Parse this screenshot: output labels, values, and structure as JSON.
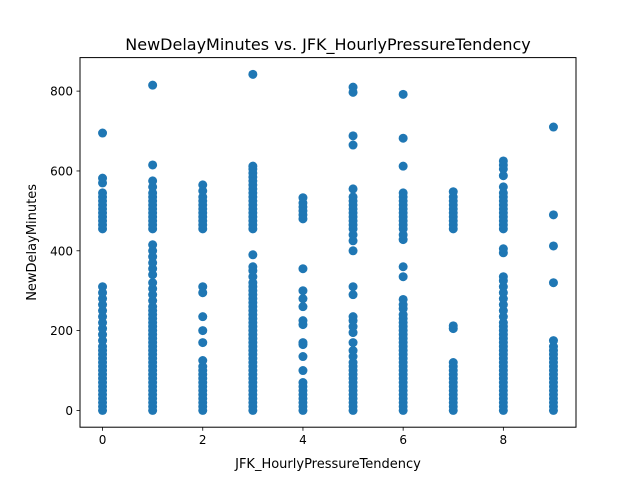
{
  "chart_data": {
    "type": "scatter",
    "title": "NewDelayMinutes vs. JFK_HourlyPressureTendency",
    "xlabel": "JFK_HourlyPressureTendency",
    "ylabel": "NewDelayMinutes",
    "xlim": [
      -0.45,
      9.45
    ],
    "ylim": [
      -42,
      884
    ],
    "xticks": [
      0,
      2,
      4,
      6,
      8
    ],
    "yticks": [
      0,
      200,
      400,
      600,
      800
    ],
    "grid": false,
    "legend": "none",
    "point_color": "#1f77b4",
    "points": [
      {
        "x": 0,
        "y": [
          0,
          10,
          20,
          30,
          40,
          50,
          60,
          70,
          80,
          90,
          100,
          110,
          120,
          130,
          140,
          150,
          160,
          175,
          190,
          205,
          220,
          235,
          250,
          265,
          280,
          295,
          310,
          455,
          465,
          475,
          485,
          495,
          505,
          515,
          525,
          535,
          545,
          570,
          582,
          695
        ]
      },
      {
        "x": 1,
        "y": [
          0,
          10,
          20,
          30,
          40,
          50,
          60,
          70,
          80,
          90,
          100,
          110,
          120,
          130,
          140,
          150,
          160,
          170,
          180,
          190,
          200,
          210,
          220,
          230,
          240,
          250,
          260,
          275,
          290,
          305,
          320,
          340,
          355,
          370,
          385,
          400,
          415,
          455,
          465,
          475,
          485,
          495,
          505,
          515,
          525,
          535,
          545,
          560,
          575,
          615,
          815
        ]
      },
      {
        "x": 2,
        "y": [
          0,
          10,
          20,
          30,
          40,
          50,
          60,
          70,
          80,
          90,
          100,
          110,
          125,
          170,
          200,
          235,
          295,
          310,
          455,
          465,
          475,
          485,
          495,
          505,
          515,
          525,
          535,
          550,
          565
        ]
      },
      {
        "x": 3,
        "y": [
          0,
          10,
          20,
          30,
          40,
          50,
          60,
          70,
          80,
          90,
          100,
          110,
          120,
          130,
          140,
          150,
          160,
          170,
          180,
          190,
          200,
          210,
          220,
          230,
          240,
          250,
          260,
          270,
          280,
          290,
          300,
          310,
          320,
          335,
          350,
          360,
          390,
          455,
          465,
          475,
          485,
          495,
          505,
          515,
          525,
          535,
          545,
          555,
          565,
          575,
          585,
          595,
          605,
          612,
          842
        ]
      },
      {
        "x": 4,
        "y": [
          0,
          10,
          20,
          30,
          40,
          50,
          60,
          70,
          100,
          135,
          165,
          170,
          215,
          225,
          260,
          280,
          300,
          355,
          480,
          490,
          500,
          510,
          520,
          533
        ]
      },
      {
        "x": 5,
        "y": [
          0,
          10,
          20,
          30,
          40,
          50,
          60,
          70,
          80,
          90,
          100,
          110,
          120,
          135,
          150,
          170,
          195,
          210,
          225,
          235,
          290,
          310,
          400,
          425,
          440,
          455,
          465,
          475,
          485,
          495,
          505,
          515,
          525,
          535,
          555,
          665,
          688,
          797,
          810
        ]
      },
      {
        "x": 6,
        "y": [
          0,
          10,
          20,
          30,
          40,
          50,
          60,
          70,
          80,
          90,
          100,
          110,
          120,
          130,
          140,
          150,
          160,
          170,
          180,
          190,
          200,
          210,
          220,
          230,
          240,
          255,
          265,
          278,
          335,
          360,
          428,
          440,
          455,
          465,
          475,
          485,
          495,
          505,
          515,
          525,
          535,
          545,
          612,
          682,
          792
        ]
      },
      {
        "x": 7,
        "y": [
          0,
          10,
          20,
          30,
          40,
          50,
          60,
          70,
          80,
          90,
          100,
          110,
          120,
          205,
          212,
          455,
          465,
          475,
          485,
          495,
          505,
          515,
          525,
          535,
          548
        ]
      },
      {
        "x": 8,
        "y": [
          0,
          10,
          20,
          30,
          40,
          50,
          60,
          70,
          80,
          90,
          100,
          110,
          120,
          130,
          140,
          150,
          160,
          170,
          180,
          190,
          200,
          210,
          220,
          235,
          250,
          265,
          280,
          295,
          310,
          325,
          335,
          395,
          405,
          455,
          465,
          475,
          485,
          495,
          505,
          515,
          525,
          535,
          545,
          560,
          588,
          605,
          615,
          625
        ]
      },
      {
        "x": 9,
        "y": [
          0,
          10,
          20,
          30,
          40,
          50,
          60,
          70,
          80,
          90,
          100,
          110,
          120,
          130,
          140,
          150,
          160,
          175,
          320,
          412,
          490,
          710
        ]
      }
    ]
  }
}
